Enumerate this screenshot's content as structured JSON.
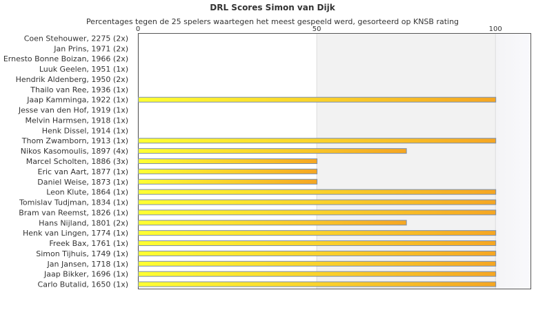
{
  "chart_data": {
    "type": "bar",
    "orientation": "horizontal",
    "title": "DRL Scores Simon van Dijk",
    "subtitle": "Percentages tegen de 25 spelers waartegen het meest gespeeld werd, gesorteerd op KNSB rating",
    "x_ticks": [
      "0",
      "50",
      "100"
    ],
    "xlim": [
      0,
      110
    ],
    "categories": [
      "Coen Stehouwer, 2275 (2x)",
      "Jan Prins, 1971 (2x)",
      "Ernesto Bonne Boizan, 1966 (2x)",
      "Luuk Geelen, 1951 (1x)",
      "Hendrik Aldenberg, 1950 (2x)",
      "Thailo van Ree, 1936 (1x)",
      "Jaap Kamminga, 1922 (1x)",
      "Jesse van den Hof, 1919 (1x)",
      "Melvin Harmsen, 1918 (1x)",
      "Henk Dissel, 1914 (1x)",
      "Thom Zwamborn, 1913 (1x)",
      "Nikos Kasomoulis, 1897 (4x)",
      "Marcel Scholten, 1886 (3x)",
      "Eric van Aart, 1877 (1x)",
      "Daniel Weise, 1873 (1x)",
      "Leon Klute, 1864 (1x)",
      "Tomislav Tudjman, 1834 (1x)",
      "Bram van Reemst, 1826 (1x)",
      "Hans Nijland, 1801 (2x)",
      "Henk van Lingen, 1774 (1x)",
      "Freek Bax, 1761 (1x)",
      "Simon Tijhuis, 1749 (1x)",
      "Jan Jansen, 1718 (1x)",
      "Jaap Bikker, 1696 (1x)",
      "Carlo Butalid, 1650 (1x)"
    ],
    "values": [
      0,
      0,
      0,
      0,
      0,
      0,
      100,
      0,
      0,
      0,
      100,
      75,
      50,
      50,
      50,
      100,
      100,
      100,
      75,
      100,
      100,
      100,
      100,
      100,
      100
    ],
    "bar_colors": [
      "#ffff33",
      "#f5a623"
    ],
    "bar_border": "#7a8fb0",
    "grid": true
  }
}
